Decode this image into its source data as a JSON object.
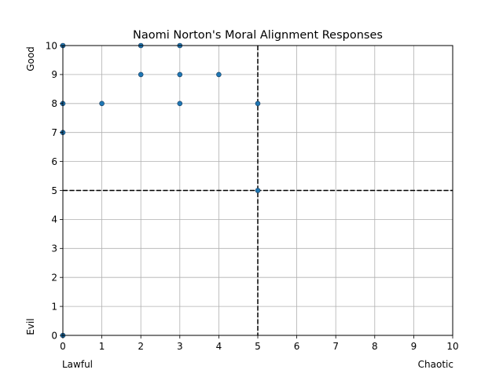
{
  "chart_data": {
    "type": "scatter",
    "title": "Naomi Norton's Moral Alignment Responses",
    "xlabel": "",
    "ylabel": "",
    "x_end_labels": {
      "low": "Lawful",
      "high": "Chaotic"
    },
    "y_end_labels": {
      "low": "Evil",
      "high": "Good"
    },
    "xlim": [
      0,
      10
    ],
    "ylim": [
      0,
      10
    ],
    "xticks": [
      0,
      1,
      2,
      3,
      4,
      5,
      6,
      7,
      8,
      9,
      10
    ],
    "yticks": [
      0,
      1,
      2,
      3,
      4,
      5,
      6,
      7,
      8,
      9,
      10
    ],
    "grid": true,
    "reference_lines": {
      "x": 5,
      "y": 5,
      "style": "dashed",
      "color": "#000000"
    },
    "marker_color": "#1f77b4",
    "points": [
      {
        "x": 0,
        "y": 10
      },
      {
        "x": 2,
        "y": 10
      },
      {
        "x": 3,
        "y": 10
      },
      {
        "x": 2,
        "y": 9
      },
      {
        "x": 3,
        "y": 9
      },
      {
        "x": 4,
        "y": 9
      },
      {
        "x": 0,
        "y": 8
      },
      {
        "x": 1,
        "y": 8
      },
      {
        "x": 3,
        "y": 8
      },
      {
        "x": 5,
        "y": 8
      },
      {
        "x": 0,
        "y": 7
      },
      {
        "x": 5,
        "y": 5
      },
      {
        "x": 0,
        "y": 0
      }
    ]
  }
}
